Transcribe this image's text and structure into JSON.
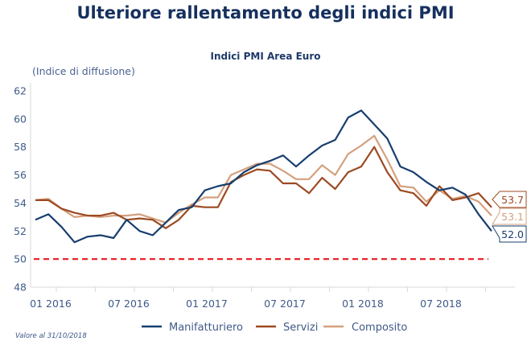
{
  "header": {
    "title": "Ulteriore rallentamento degli indici PMI"
  },
  "footnote": "Valore al 31/10/2018",
  "chart_data": {
    "type": "line",
    "title": "Indici PMI Area Euro",
    "ylabel": "(Indice di diffusione)",
    "xlabel": "",
    "ylim": [
      48,
      62
    ],
    "yticks": [
      48,
      50,
      52,
      54,
      56,
      58,
      60,
      62
    ],
    "xtick_labels": [
      "01 2016",
      "07 2016",
      "01 2017",
      "07 2017",
      "01 2018",
      "07 2018"
    ],
    "x": [
      "11 2015",
      "12 2015",
      "01 2016",
      "02 2016",
      "03 2016",
      "04 2016",
      "05 2016",
      "06 2016",
      "07 2016",
      "08 2016",
      "09 2016",
      "10 2016",
      "11 2016",
      "12 2016",
      "01 2017",
      "02 2017",
      "03 2017",
      "04 2017",
      "05 2017",
      "06 2017",
      "07 2017",
      "08 2017",
      "09 2017",
      "10 2017",
      "11 2017",
      "12 2017",
      "01 2018",
      "02 2018",
      "03 2018",
      "04 2018",
      "05 2018",
      "06 2018",
      "07 2018",
      "08 2018",
      "09 2018",
      "10 2018"
    ],
    "grid": false,
    "legend_position": "bottom",
    "reference_line": {
      "value": 50,
      "color": "#e8262a",
      "style": "dashed"
    },
    "series": [
      {
        "name": "Manifatturiero",
        "color": "#173e6e",
        "end_label": "52.0",
        "values": [
          52.8,
          53.2,
          52.3,
          51.2,
          51.6,
          51.7,
          51.5,
          52.8,
          52.0,
          51.7,
          52.6,
          53.5,
          53.7,
          54.9,
          55.2,
          55.4,
          56.2,
          56.7,
          57.0,
          57.4,
          56.6,
          57.4,
          58.1,
          58.5,
          60.1,
          60.6,
          59.6,
          58.6,
          56.6,
          56.2,
          55.5,
          54.9,
          55.1,
          54.6,
          53.2,
          52.0
        ]
      },
      {
        "name": "Servizi",
        "color": "#9c4a22",
        "end_label": "53.7",
        "values": [
          54.2,
          54.2,
          53.6,
          53.3,
          53.1,
          53.1,
          53.3,
          52.8,
          52.9,
          52.8,
          52.2,
          52.8,
          53.8,
          53.7,
          53.7,
          55.5,
          56.0,
          56.4,
          56.3,
          55.4,
          55.4,
          54.7,
          55.8,
          55.0,
          56.2,
          56.6,
          58.0,
          56.2,
          54.9,
          54.7,
          53.8,
          55.2,
          54.2,
          54.4,
          54.7,
          53.7
        ]
      },
      {
        "name": "Composito",
        "color": "#d4a07e",
        "end_label": "53.1",
        "values": [
          54.2,
          54.3,
          53.6,
          53.0,
          53.1,
          53.0,
          53.1,
          53.1,
          53.2,
          52.9,
          52.6,
          53.3,
          53.9,
          54.4,
          54.4,
          56.0,
          56.4,
          56.8,
          56.8,
          56.3,
          55.7,
          55.7,
          56.7,
          56.0,
          57.5,
          58.1,
          58.8,
          57.1,
          55.2,
          55.1,
          54.1,
          54.9,
          54.3,
          54.5,
          54.1,
          53.1
        ]
      }
    ]
  }
}
